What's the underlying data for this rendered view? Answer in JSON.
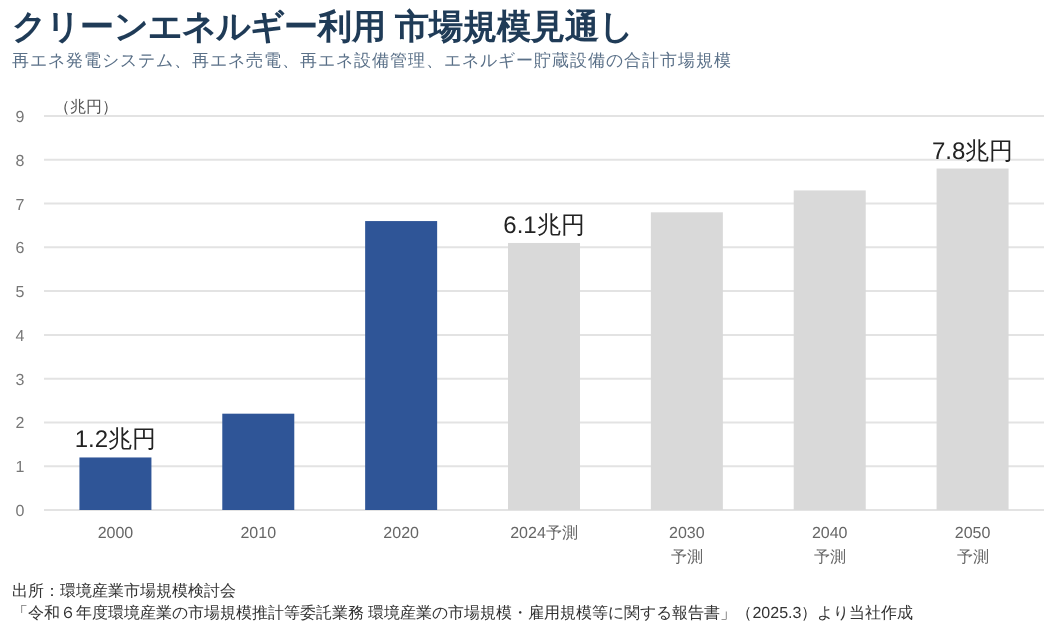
{
  "chart_data": {
    "type": "bar",
    "title": "クリーンエネルギー利用 市場規模見通し",
    "subtitle": "再エネ発電システム、再エネ売電、再エネ設備管理、エネルギー貯蔵設備の合計市場規模",
    "ylabel": "（兆円）",
    "categories": [
      "2000",
      "2010",
      "2020",
      "2024予測",
      "2030\n予測",
      "2040\n予測",
      "2050\n予測"
    ],
    "values": [
      1.2,
      2.2,
      6.6,
      6.1,
      6.8,
      7.3,
      7.8
    ],
    "colors": [
      "#2f5597",
      "#2f5597",
      "#2f5597",
      "#d9d9d9",
      "#d9d9d9",
      "#d9d9d9",
      "#d9d9d9"
    ],
    "value_labels": [
      "1.2兆円",
      null,
      null,
      "6.1兆円",
      null,
      null,
      "7.8兆円"
    ],
    "ylim": [
      0,
      9
    ],
    "yticks": [
      0,
      1,
      2,
      3,
      4,
      5,
      6,
      7,
      8,
      9
    ],
    "grid": "y",
    "annotations": [
      "出所：環境産業市場規模検討会",
      "「令和６年度環境産業の市場規模推計等委託業務 環境産業の市場規模・雇用規模等に関する報告書」（2025.3）より当社作成"
    ]
  }
}
